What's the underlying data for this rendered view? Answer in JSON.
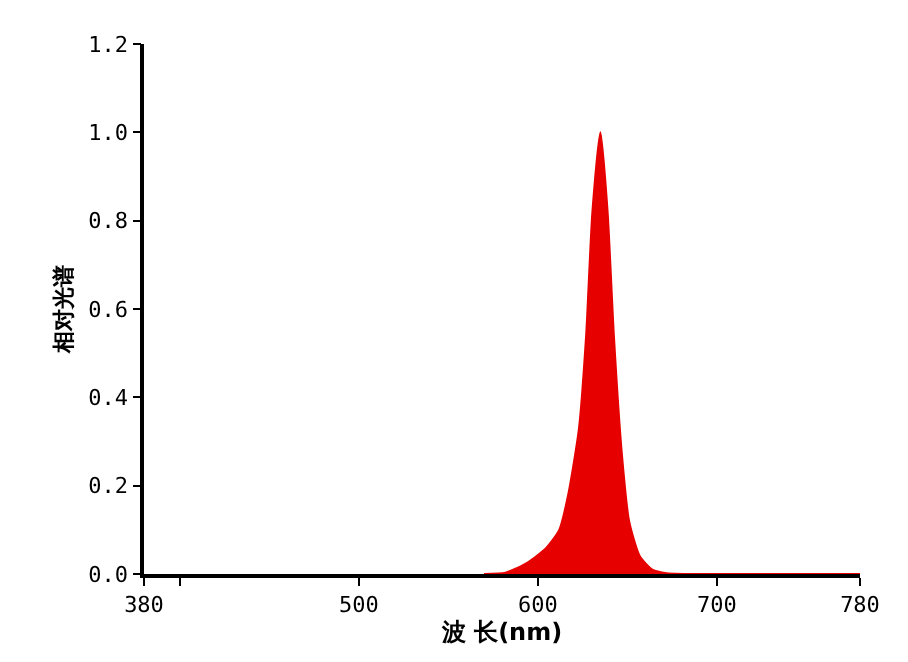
{
  "chart_data": {
    "type": "area",
    "xlabel": "波 长(nm)",
    "ylabel": "相对光谱",
    "x": [
      570,
      582,
      593,
      604,
      612,
      617,
      623,
      627,
      630.5,
      635,
      639,
      642.5,
      647,
      651,
      657,
      664,
      672,
      700,
      780
    ],
    "series": [
      {
        "color": "#e60000",
        "values": [
          0,
          0.003,
          0.023,
          0.056,
          0.1,
          0.18,
          0.33,
          0.54,
          0.82,
          1.0,
          0.82,
          0.54,
          0.27,
          0.12,
          0.04,
          0.01,
          0.002,
          0,
          0
        ]
      }
    ],
    "xlim": [
      380,
      780
    ],
    "xticks": [
      380,
      {
        "value": 400,
        "label": null
      },
      500,
      600,
      700,
      780
    ],
    "ylim": [
      0,
      1.2
    ],
    "yticks": [
      {
        "value": 0,
        "label": "0.0"
      },
      {
        "value": 0.2,
        "label": "0.2"
      },
      {
        "value": 0.4,
        "label": "0.4"
      },
      {
        "value": 0.6,
        "label": "0.6"
      },
      {
        "value": 0.8,
        "label": "0.8"
      },
      {
        "value": 1.0,
        "label": "1.0"
      },
      {
        "value": 1.2,
        "label": "1.2"
      }
    ],
    "tick_labels": "xy"
  }
}
